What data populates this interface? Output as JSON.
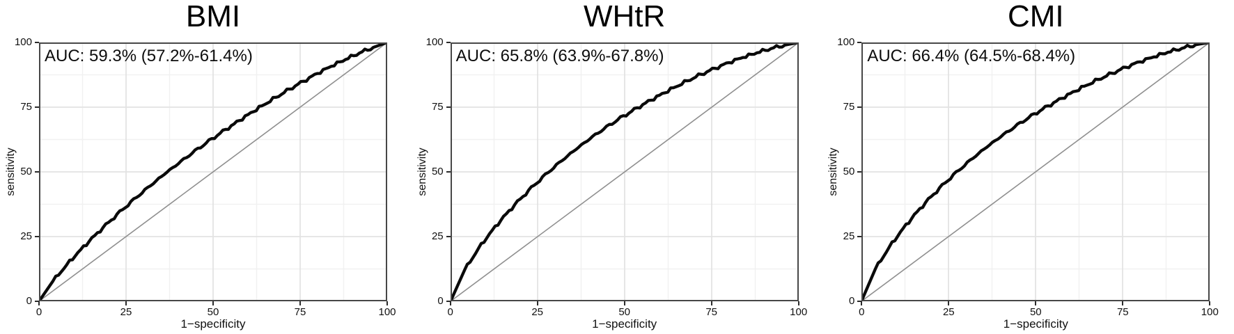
{
  "figure": {
    "panels": [
      {
        "title": "BMI",
        "auc_label": "AUC: 59.3% (57.2%-61.4%)"
      },
      {
        "title": "WHtR",
        "auc_label": "AUC: 65.8% (63.9%-67.8%)"
      },
      {
        "title": "CMI",
        "auc_label": "AUC: 66.4% (64.5%-68.4%)"
      }
    ],
    "axes": {
      "x_label": "1−specificity",
      "y_label": "sensitivity",
      "x_ticks": [
        "0",
        "25",
        "50",
        "75",
        "100"
      ],
      "y_ticks": [
        "0",
        "25",
        "50",
        "75",
        "100"
      ]
    }
  },
  "colors": {
    "curve": "#0a0a0a",
    "diagonal": "#8f8f8f",
    "grid_major": "#e3e3e3",
    "grid_minor": "#f1f1f1",
    "panel_border": "#474747",
    "tick": "#2b2b2b",
    "background": "#ffffff"
  },
  "chart_data": [
    {
      "type": "line",
      "title": "BMI",
      "xlabel": "1−specificity",
      "ylabel": "sensitivity",
      "xlim": [
        0,
        100
      ],
      "ylim": [
        0,
        100
      ],
      "grid": true,
      "diagonal_reference": [
        [
          0,
          0
        ],
        [
          100,
          100
        ]
      ],
      "auc_percent": 59.3,
      "auc_ci_percent": [
        57.2,
        61.4
      ],
      "points": [
        [
          0,
          0
        ],
        [
          4,
          7.8
        ],
        [
          8,
          14.2
        ],
        [
          12,
          20.0
        ],
        [
          16,
          25.4
        ],
        [
          20,
          30.5
        ],
        [
          24,
          35.4
        ],
        [
          28,
          40.1
        ],
        [
          32,
          44.6
        ],
        [
          36,
          49.0
        ],
        [
          40,
          53.1
        ],
        [
          44,
          57.2
        ],
        [
          48,
          61.1
        ],
        [
          52,
          64.9
        ],
        [
          56,
          68.5
        ],
        [
          60,
          72.1
        ],
        [
          64,
          75.5
        ],
        [
          68,
          78.8
        ],
        [
          72,
          82.0
        ],
        [
          76,
          85.0
        ],
        [
          80,
          88.0
        ],
        [
          84,
          90.8
        ],
        [
          88,
          93.4
        ],
        [
          92,
          95.9
        ],
        [
          96,
          98.1
        ],
        [
          100,
          100
        ]
      ]
    },
    {
      "type": "line",
      "title": "WHtR",
      "xlabel": "1−specificity",
      "ylabel": "sensitivity",
      "xlim": [
        0,
        100
      ],
      "ylim": [
        0,
        100
      ],
      "grid": true,
      "diagonal_reference": [
        [
          0,
          0
        ],
        [
          100,
          100
        ]
      ],
      "auc_percent": 65.8,
      "auc_ci_percent": [
        63.9,
        67.8
      ],
      "points": [
        [
          0,
          0
        ],
        [
          4,
          12.0
        ],
        [
          8,
          20.4
        ],
        [
          12,
          27.5
        ],
        [
          16,
          33.8
        ],
        [
          20,
          39.5
        ],
        [
          24,
          44.8
        ],
        [
          28,
          49.7
        ],
        [
          32,
          54.3
        ],
        [
          36,
          58.6
        ],
        [
          40,
          62.7
        ],
        [
          44,
          66.5
        ],
        [
          48,
          70.1
        ],
        [
          52,
          73.4
        ],
        [
          56,
          76.6
        ],
        [
          60,
          79.6
        ],
        [
          64,
          82.5
        ],
        [
          68,
          85.2
        ],
        [
          72,
          87.7
        ],
        [
          76,
          90.0
        ],
        [
          80,
          92.2
        ],
        [
          84,
          94.2
        ],
        [
          88,
          96.0
        ],
        [
          92,
          97.6
        ],
        [
          96,
          99.0
        ],
        [
          100,
          100
        ]
      ]
    },
    {
      "type": "line",
      "title": "CMI",
      "xlabel": "1−specificity",
      "ylabel": "sensitivity",
      "xlim": [
        0,
        100
      ],
      "ylim": [
        0,
        100
      ],
      "grid": true,
      "diagonal_reference": [
        [
          0,
          0
        ],
        [
          100,
          100
        ]
      ],
      "auc_percent": 66.4,
      "auc_ci_percent": [
        64.5,
        68.4
      ],
      "points": [
        [
          0,
          0
        ],
        [
          4,
          12.5
        ],
        [
          8,
          21.0
        ],
        [
          12,
          28.2
        ],
        [
          16,
          34.6
        ],
        [
          20,
          40.4
        ],
        [
          24,
          45.7
        ],
        [
          28,
          50.6
        ],
        [
          32,
          55.2
        ],
        [
          36,
          59.5
        ],
        [
          40,
          63.5
        ],
        [
          44,
          67.3
        ],
        [
          48,
          70.9
        ],
        [
          52,
          74.2
        ],
        [
          56,
          77.3
        ],
        [
          60,
          80.3
        ],
        [
          64,
          83.1
        ],
        [
          68,
          85.7
        ],
        [
          72,
          88.1
        ],
        [
          76,
          90.4
        ],
        [
          80,
          92.5
        ],
        [
          84,
          94.4
        ],
        [
          88,
          96.2
        ],
        [
          92,
          97.7
        ],
        [
          96,
          99.1
        ],
        [
          100,
          100
        ]
      ]
    }
  ]
}
